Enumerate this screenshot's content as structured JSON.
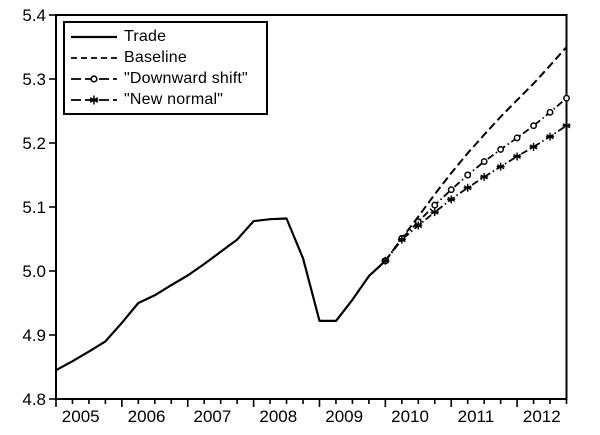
{
  "figure": {
    "background_color": "#ffffff",
    "ink_color": "#000000",
    "title": ""
  },
  "chart_data": {
    "type": "line",
    "title": "",
    "xlabel": "",
    "ylabel": "",
    "grid": "off",
    "legend_position": "top-left-inside",
    "x_axis": {
      "unit": "quarterly",
      "start": "2005Q1",
      "end": "2012Q4",
      "tick_labels": [
        "2005",
        "2006",
        "2007",
        "2008",
        "2009",
        "2010",
        "2011",
        "2012"
      ]
    },
    "y_axis": {
      "min": 4.8,
      "max": 5.4,
      "tick_labels": [
        "4.8",
        "4.9",
        "5.0",
        "5.1",
        "5.2",
        "5.3",
        "5.4"
      ]
    },
    "series": [
      {
        "name": "Trade",
        "line": "solid",
        "marker": "none",
        "start": "2005Q1",
        "start_index": 0,
        "values": [
          4.845,
          4.859,
          4.874,
          4.89,
          4.919,
          4.95,
          4.962,
          4.978,
          4.993,
          5.011,
          5.03,
          5.049,
          5.078,
          5.081,
          5.082,
          5.02,
          4.922,
          4.922,
          4.955,
          4.992,
          5.016
        ]
      },
      {
        "name": "Baseline",
        "line": "dashed",
        "marker": "none",
        "start": "2010Q1",
        "start_index": 20,
        "values": [
          5.016,
          5.051,
          5.085,
          5.12,
          5.153,
          5.184,
          5.213,
          5.241,
          5.267,
          5.293,
          5.321,
          5.35
        ]
      },
      {
        "name": "\"Downward shift\"",
        "line": "dashdot",
        "marker": "circle",
        "start": "2010Q1",
        "start_index": 20,
        "values": [
          5.016,
          5.051,
          5.077,
          5.103,
          5.127,
          5.15,
          5.171,
          5.19,
          5.208,
          5.227,
          5.248,
          5.27
        ]
      },
      {
        "name": "\"New normal\"",
        "line": "dashdot",
        "marker": "asterisk",
        "start": "2010Q1",
        "start_index": 20,
        "values": [
          5.016,
          5.049,
          5.071,
          5.092,
          5.112,
          5.13,
          5.147,
          5.163,
          5.179,
          5.194,
          5.21,
          5.227
        ]
      }
    ]
  }
}
